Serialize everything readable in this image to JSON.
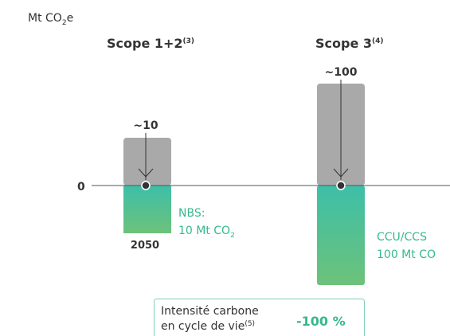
{
  "unit": {
    "text": "Mt CO",
    "sub": "2",
    "suffix": "e"
  },
  "zero_label": "0",
  "groups": [
    {
      "title": "Scope 1+2",
      "note": "(3)",
      "gross": "~10",
      "year": "2050",
      "removal": {
        "line1": "NBS:",
        "line2": "10 Mt CO",
        "sub": "2"
      }
    },
    {
      "title": "Scope 3",
      "note": "(4)",
      "gross": "~100",
      "removal": {
        "line1": "CCU/CCS",
        "line2": "100 Mt CO"
      }
    }
  ],
  "summary": {
    "line1": "Intensité carbone",
    "line2": "en cycle de vie",
    "note": "(5)",
    "value": "-100 %"
  }
}
